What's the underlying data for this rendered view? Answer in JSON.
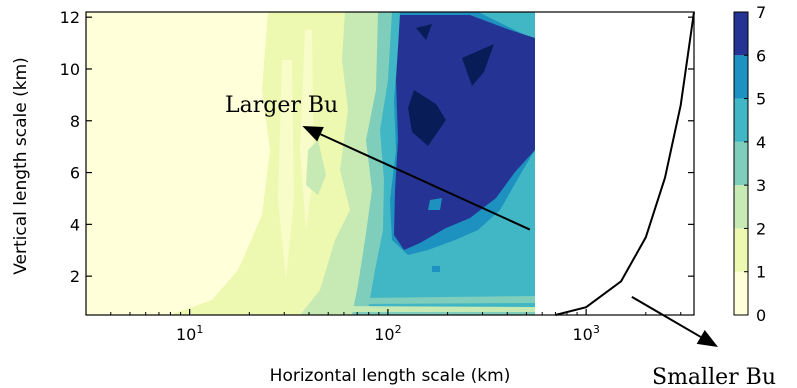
{
  "chart_data": {
    "type": "contour",
    "title": "",
    "xlabel": "Horizontal length scale (km)",
    "ylabel": "Vertical length scale (km)",
    "x_scale": "log",
    "xlim": [
      3,
      3500
    ],
    "ylim": [
      0.5,
      12.2
    ],
    "x_ticks": [
      {
        "value": 10,
        "base": "10",
        "exp": "1"
      },
      {
        "value": 100,
        "base": "10",
        "exp": "2"
      },
      {
        "value": 1000,
        "base": "10",
        "exp": "3"
      }
    ],
    "y_ticks": [
      2,
      4,
      6,
      8,
      10,
      12
    ],
    "grid": false,
    "colorbar": {
      "ticks": [
        0,
        1,
        2,
        3,
        4,
        5,
        6,
        7
      ],
      "levels": [
        0,
        1,
        2,
        3,
        4,
        5,
        6,
        7
      ],
      "colors": [
        "#ffffd9",
        "#edf8b1",
        "#c7e9b4",
        "#7fcdbb",
        "#41b6c4",
        "#1d91c0",
        "#253494",
        "#081d58"
      ]
    },
    "contour_bands": [
      {
        "level": 1,
        "x": [
          8,
          520
        ]
      },
      {
        "level": 2,
        "x": [
          70,
          520
        ]
      },
      {
        "level": 3,
        "x": [
          85,
          520
        ]
      },
      {
        "level": 4,
        "x": [
          100,
          520
        ]
      },
      {
        "level": 5,
        "x": [
          120,
          350
        ]
      }
    ],
    "regime_boundary": {
      "x": [
        700,
        1000,
        1500,
        2000,
        2500,
        3000,
        3500
      ],
      "y": [
        0.5,
        0.8,
        1.8,
        3.5,
        5.8,
        8.6,
        12.2
      ]
    },
    "annotations": [
      {
        "text": "Larger Bu",
        "arrow_from": {
          "x": 520,
          "y": 3.8
        },
        "arrow_to": {
          "x": 37,
          "y": 7.8
        }
      },
      {
        "text": "Smaller Bu",
        "arrow_from": {
          "x": 1700,
          "y": 1.2
        },
        "arrow_to": {
          "x": 4500,
          "y": -1
        }
      }
    ]
  }
}
